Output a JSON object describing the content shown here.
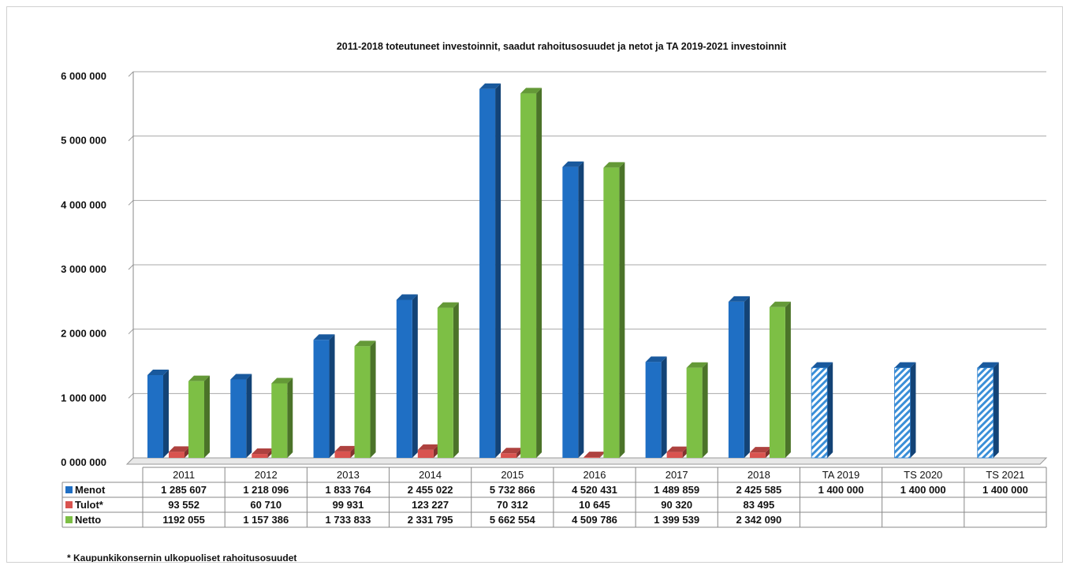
{
  "chart_data": {
    "type": "bar",
    "title": "2011-2018 toteutuneet investoinnit, saadut rahoitusosuudet ja netot ja TA 2019-2021 investoinnit",
    "categories": [
      "2011",
      "2012",
      "2013",
      "2014",
      "2015",
      "2016",
      "2017",
      "2018",
      "TA 2019",
      "TS 2020",
      "TS 2021"
    ],
    "ylim": [
      0,
      6000000
    ],
    "yticks": [
      0,
      1000000,
      2000000,
      3000000,
      4000000,
      5000000,
      6000000
    ],
    "ytick_labels": [
      "0 000 000",
      "1 000 000",
      "2 000 000",
      "3 000 000",
      "4 000 000",
      "5 000 000",
      "6 000 000"
    ],
    "grid": true,
    "legend_placement": "data-table-left",
    "series": [
      {
        "name": "Menot",
        "color": "#1f6fc4",
        "values": [
          1285607,
          1218096,
          1833764,
          2455022,
          5732866,
          4520431,
          1489859,
          2425585,
          1400000,
          1400000,
          1400000
        ],
        "labels": [
          "1 285 607",
          "1 218 096",
          "1 833 764",
          "2 455 022",
          "5 732 866",
          "4 520 431",
          "1 489 859",
          "2 425 585",
          "1 400 000",
          "1 400 000",
          "1 400 000"
        ]
      },
      {
        "name": "Tulot*",
        "color": "#d9534f",
        "values": [
          93552,
          60710,
          99931,
          123227,
          70312,
          10645,
          90320,
          83495,
          null,
          null,
          null
        ],
        "labels": [
          "93 552",
          "60 710",
          "99 931",
          "123 227",
          "70 312",
          "10 645",
          "90 320",
          "83 495",
          "",
          "",
          ""
        ]
      },
      {
        "name": "Netto",
        "color": "#7dbf45",
        "values": [
          1192055,
          1157386,
          1733833,
          2331795,
          5662554,
          4509786,
          1399539,
          2342090,
          null,
          null,
          null
        ],
        "labels": [
          "1192 055",
          "1 157 386",
          "1 733 833",
          "2 331 795",
          "5 662 554",
          "4 509 786",
          "1 399 539",
          "2 342 090",
          "",
          "",
          ""
        ]
      }
    ],
    "footnote": "* Kaupunkikonsernin ulkopuoliset rahoitusosuudet"
  }
}
